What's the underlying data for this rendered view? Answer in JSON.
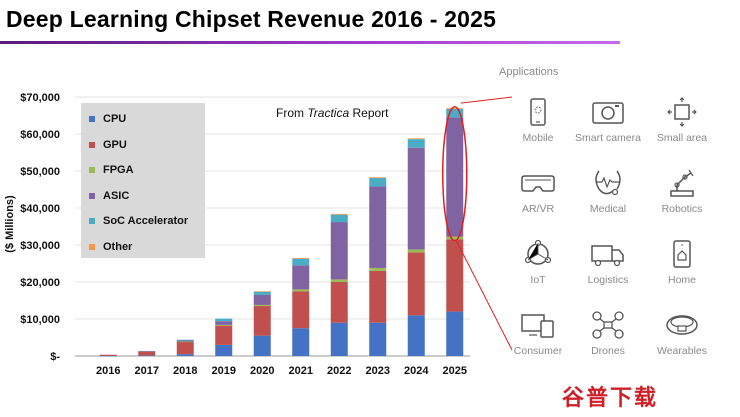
{
  "title": "Deep Learning Chipset Revenue 2016 - 2025",
  "source_prefix": "From ",
  "source_italic": "Tractica",
  "source_suffix": " Report",
  "colors": {
    "CPU": "#4472c4",
    "GPU": "#c0504d",
    "FPGA": "#9bbb59",
    "ASIC": "#8064a2",
    "SoC Accelerator": "#4bacc6",
    "Other": "#f79646",
    "highlight": "#e02020",
    "title_rule": "#a23bd0"
  },
  "chart_data": {
    "type": "bar",
    "stacked": true,
    "categories": [
      "2016",
      "2017",
      "2018",
      "2019",
      "2020",
      "2021",
      "2022",
      "2023",
      "2024",
      "2025"
    ],
    "ylabel": "($ Millions)",
    "ylim": [
      0,
      70000
    ],
    "yticks": [
      "$-",
      "$10,000",
      "$20,000",
      "$30,000",
      "$40,000",
      "$50,000",
      "$60,000",
      "$70,000"
    ],
    "series": [
      {
        "name": "CPU",
        "values": [
          50,
          150,
          500,
          3000,
          5500,
          7500,
          9000,
          9000,
          11000,
          12000
        ]
      },
      {
        "name": "GPU",
        "values": [
          300,
          1000,
          3300,
          5200,
          8000,
          10000,
          11000,
          14000,
          17000,
          19500
        ]
      },
      {
        "name": "FPGA",
        "values": [
          0,
          0,
          100,
          200,
          300,
          500,
          700,
          800,
          800,
          800
        ]
      },
      {
        "name": "ASIC",
        "values": [
          0,
          200,
          300,
          1000,
          2700,
          6500,
          15500,
          22000,
          27500,
          32200
        ]
      },
      {
        "name": "SoC Accelerator",
        "values": [
          0,
          0,
          200,
          700,
          900,
          1800,
          2000,
          2300,
          2300,
          2300
        ]
      },
      {
        "name": "Other",
        "values": [
          0,
          0,
          0,
          0,
          100,
          200,
          200,
          200,
          200,
          200
        ]
      }
    ],
    "highlight_category": "2025"
  },
  "applications": {
    "title": "Applications",
    "items": [
      {
        "label": "Mobile",
        "icon": "mobile-icon"
      },
      {
        "label": "Smart camera",
        "icon": "smart-camera-icon"
      },
      {
        "label": "Small area",
        "icon": "small-area-icon"
      },
      {
        "label": "AR/VR",
        "icon": "ar-vr-icon"
      },
      {
        "label": "Medical",
        "icon": "medical-icon"
      },
      {
        "label": "Robotics",
        "icon": "robotics-icon"
      },
      {
        "label": "IoT",
        "icon": "iot-icon"
      },
      {
        "label": "Logistics",
        "icon": "logistics-icon"
      },
      {
        "label": "Home",
        "icon": "home-icon"
      },
      {
        "label": "Consumer",
        "icon": "consumer-icon"
      },
      {
        "label": "Drones",
        "icon": "drones-icon"
      },
      {
        "label": "Wearables",
        "icon": "wearables-icon"
      }
    ]
  },
  "watermark": "谷普下载"
}
